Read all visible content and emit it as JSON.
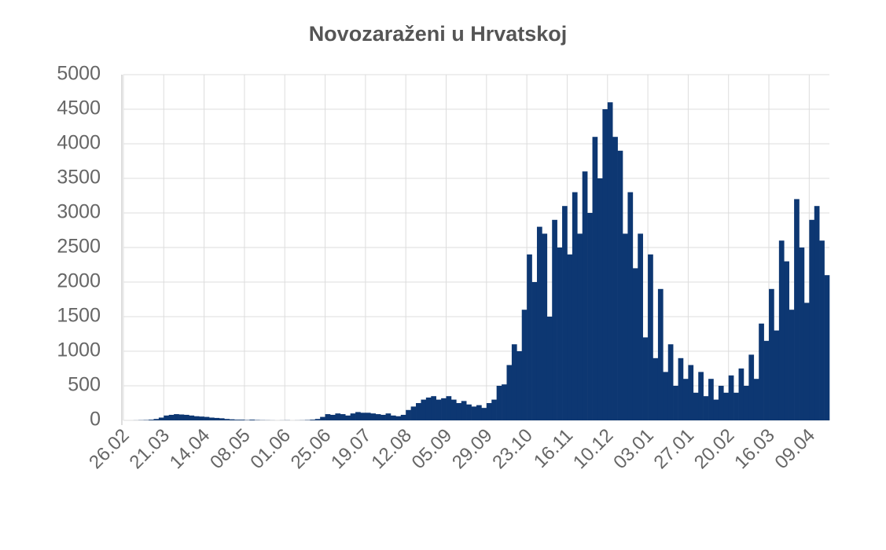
{
  "chart_data": {
    "type": "bar",
    "title": "Novozaraženi u Hrvatskoj",
    "color": "#0d3772",
    "grid": true,
    "categories": [
      "26.02",
      null,
      null,
      null,
      null,
      null,
      null,
      null,
      "21.03",
      null,
      null,
      null,
      null,
      null,
      null,
      null,
      "14.04",
      null,
      null,
      null,
      null,
      null,
      null,
      null,
      "08.05",
      null,
      null,
      null,
      null,
      null,
      null,
      null,
      "01.06",
      null,
      null,
      null,
      null,
      null,
      null,
      null,
      "25.06",
      null,
      null,
      null,
      null,
      null,
      null,
      null,
      "19.07",
      null,
      null,
      null,
      null,
      null,
      null,
      null,
      "12.08",
      null,
      null,
      null,
      null,
      null,
      null,
      null,
      "05.09",
      null,
      null,
      null,
      null,
      null,
      null,
      null,
      "29.09",
      null,
      null,
      null,
      null,
      null,
      null,
      null,
      "23.10",
      null,
      null,
      null,
      null,
      null,
      null,
      null,
      "16.11",
      null,
      null,
      null,
      null,
      null,
      null,
      null,
      "10.12",
      null,
      null,
      null,
      null,
      null,
      null,
      null,
      "03.01",
      null,
      null,
      null,
      null,
      null,
      null,
      null,
      "27.01",
      null,
      null,
      null,
      null,
      null,
      null,
      null,
      "20.02",
      null,
      null,
      null,
      null,
      null,
      null,
      null,
      "16.03",
      null,
      null,
      null,
      null,
      null,
      null,
      null,
      "09.04",
      null,
      null,
      null
    ],
    "values": [
      0,
      0,
      1,
      3,
      5,
      10,
      20,
      40,
      70,
      80,
      90,
      85,
      80,
      70,
      60,
      55,
      50,
      40,
      35,
      30,
      20,
      15,
      10,
      10,
      5,
      10,
      5,
      3,
      2,
      1,
      0,
      1,
      2,
      0,
      1,
      2,
      5,
      10,
      20,
      50,
      90,
      80,
      100,
      90,
      70,
      100,
      120,
      110,
      110,
      100,
      90,
      80,
      100,
      70,
      60,
      80,
      150,
      200,
      250,
      300,
      330,
      350,
      300,
      320,
      350,
      300,
      250,
      280,
      230,
      200,
      220,
      180,
      250,
      300,
      500,
      520,
      800,
      1100,
      1000,
      1600,
      2400,
      2000,
      2800,
      2700,
      1500,
      2900,
      2500,
      3100,
      2400,
      3300,
      2700,
      3600,
      3000,
      4100,
      3500,
      4500,
      4600,
      4100,
      3900,
      2700,
      3300,
      2200,
      2700,
      1200,
      2400,
      900,
      1900,
      700,
      1100,
      500,
      900,
      600,
      800,
      400,
      700,
      350,
      600,
      300,
      500,
      400,
      650,
      400,
      750,
      500,
      950,
      600,
      1400,
      1150,
      1900,
      1300,
      2600,
      2300,
      1600,
      3200,
      2500,
      1700,
      2900,
      3100,
      2600,
      2100
    ],
    "ylim": [
      0,
      5000
    ],
    "yticks": [
      0,
      500,
      1000,
      1500,
      2000,
      2500,
      3000,
      3500,
      4000,
      4500,
      5000
    ]
  }
}
